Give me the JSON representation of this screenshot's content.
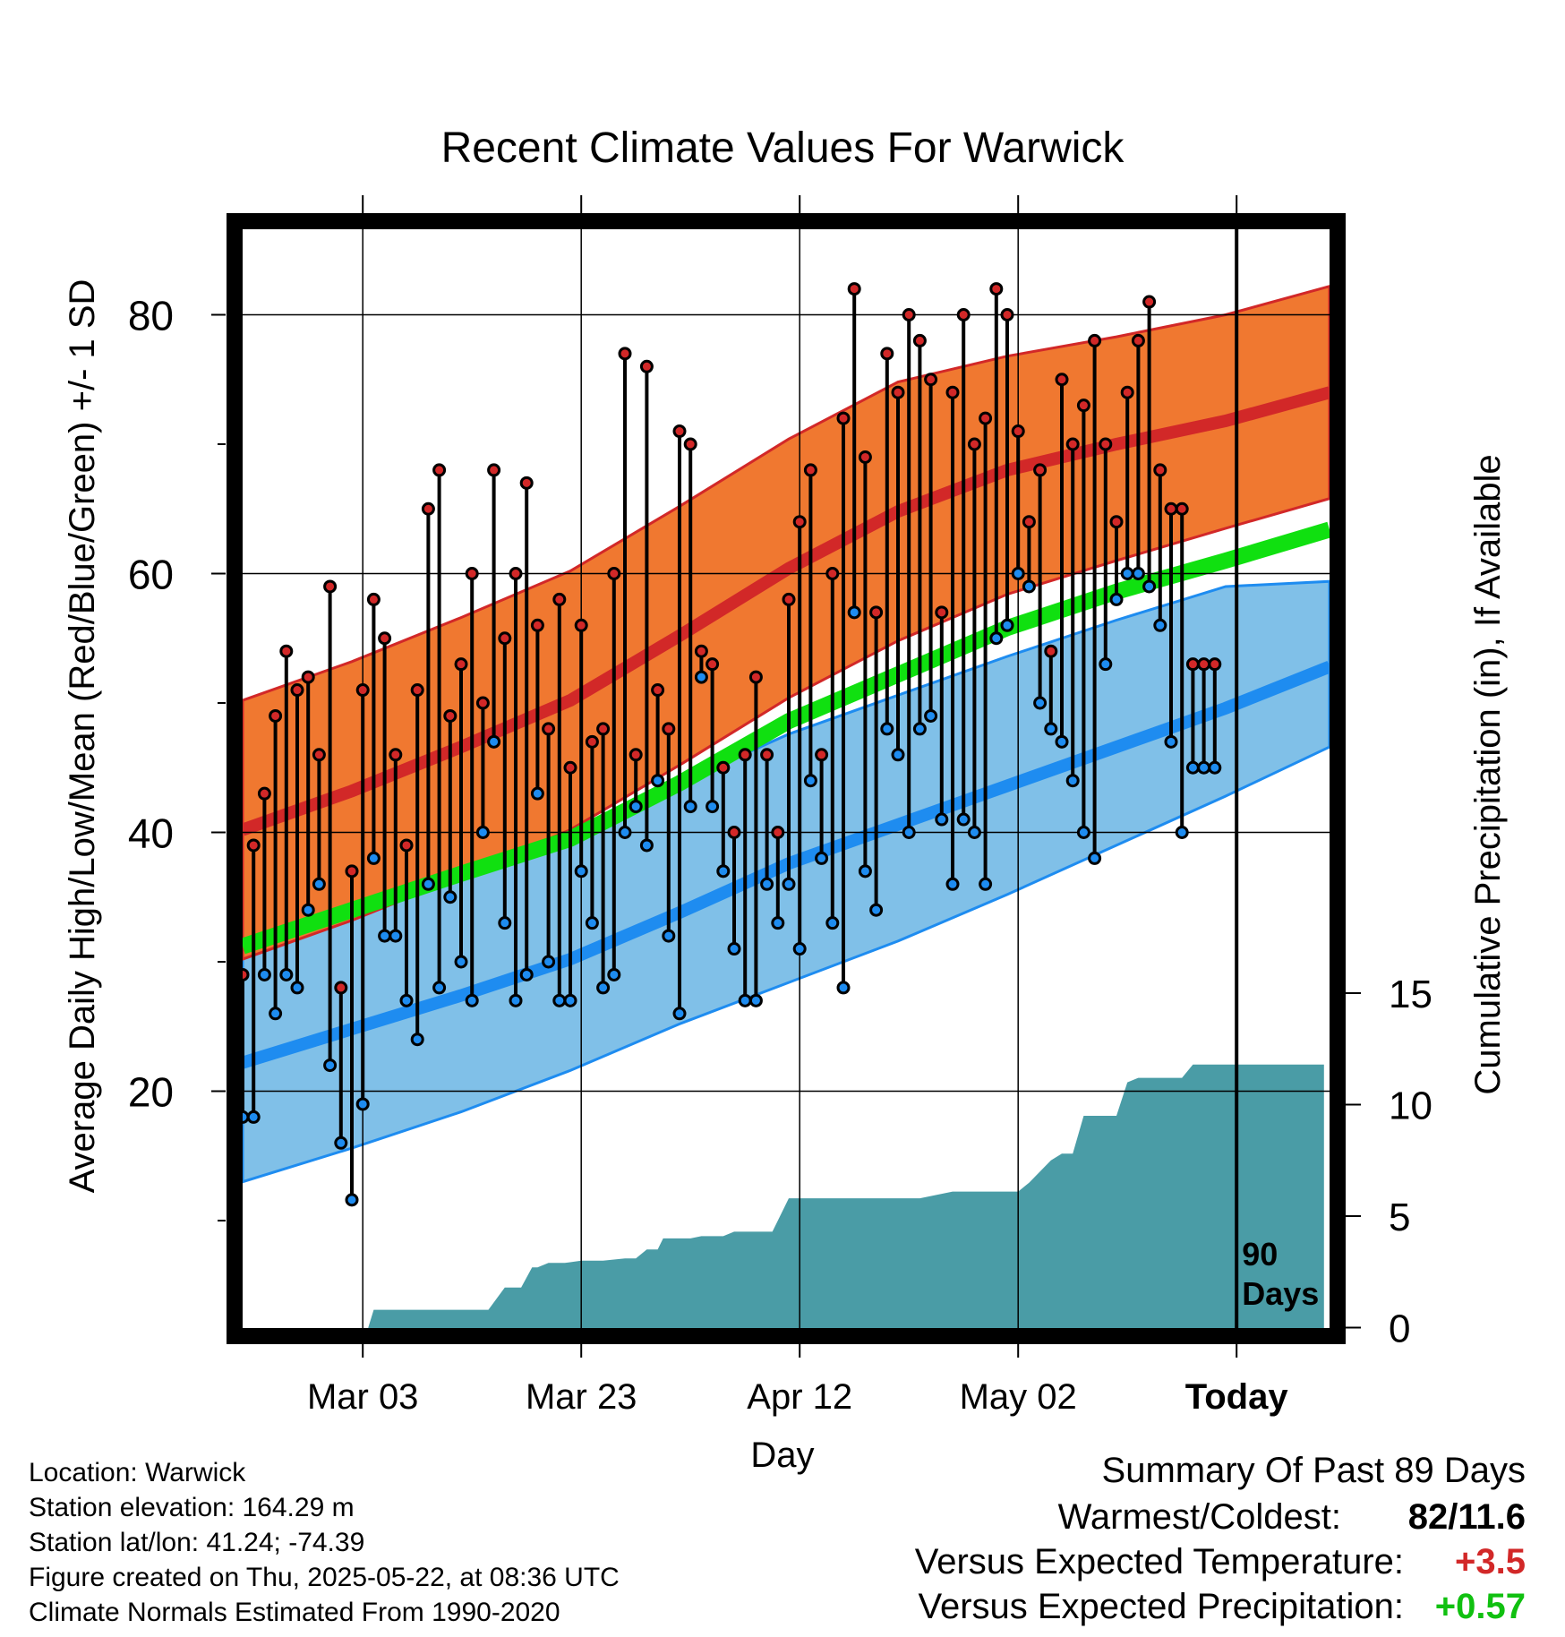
{
  "chart_data": {
    "type": "line",
    "title": "Recent Climate Values For Warwick",
    "xlabel": "Day",
    "ylabel": "Average Daily High/Low/Mean (Red/Blue/Green) +/- 1 SD",
    "y2label": "Cumulative Precipitation (in), If Available",
    "ylim": [
      4,
      86
    ],
    "y2lim": [
      -0.2,
      26
    ],
    "y_ticks": [
      80,
      60,
      40,
      20
    ],
    "y2_ticks": [
      15,
      10,
      5,
      0
    ],
    "x_tick_labels": [
      "Mar 03",
      "Mar 23",
      "Apr 12",
      "May 02",
      "Today"
    ],
    "x_tick_days": [
      11,
      31,
      51,
      71,
      91
    ],
    "today_day": 91,
    "today_marker_label": [
      "90",
      "Days"
    ],
    "grid": true,
    "colors": {
      "high_band": "#f07830",
      "high_mean": "#d22828",
      "low_band": "#80c0e8",
      "low_mean": "#1e8cf0",
      "mean": "#10e010",
      "precip": "#4a9ca6",
      "high_point": "#d22828",
      "low_point": "#1e8cf0"
    },
    "normals": {
      "days": [
        0,
        10,
        20,
        30,
        40,
        50,
        60,
        70,
        80,
        90,
        100
      ],
      "high_mean": [
        40.2,
        43.2,
        46.6,
        50.2,
        55.2,
        60.4,
        64.8,
        68.0,
        70.0,
        71.8,
        74.0
      ],
      "high_sd_upper": [
        50.2,
        53.2,
        56.6,
        60.2,
        65.2,
        70.4,
        74.8,
        76.8,
        78.3,
        80.0,
        82.2
      ],
      "high_sd_lower": [
        30.2,
        33.2,
        36.6,
        40.2,
        45.2,
        50.4,
        54.8,
        58.4,
        61.0,
        63.5,
        65.8
      ],
      "mean": [
        31.2,
        34.0,
        36.8,
        39.5,
        43.8,
        48.6,
        52.2,
        55.8,
        58.6,
        61.0,
        63.4
      ],
      "low_mean": [
        22.2,
        24.8,
        27.4,
        30.2,
        33.8,
        37.6,
        40.6,
        43.6,
        46.6,
        49.6,
        52.8
      ],
      "low_sd_upper": [
        32.2,
        34.8,
        37.4,
        40.2,
        43.8,
        47.6,
        50.6,
        53.6,
        56.4,
        59.0,
        59.4
      ],
      "low_sd_lower": [
        13.0,
        15.6,
        18.4,
        21.6,
        25.2,
        28.4,
        31.6,
        35.2,
        39.0,
        42.8,
        46.6
      ]
    },
    "series": [
      {
        "name": "High",
        "days": [
          0,
          1,
          2,
          3,
          4,
          5,
          6,
          7,
          8,
          9,
          10,
          11,
          12,
          13,
          14,
          15,
          16,
          17,
          18,
          19,
          20,
          21,
          22,
          23,
          24,
          25,
          26,
          27,
          28,
          29,
          30,
          31,
          32,
          33,
          34,
          35,
          36,
          37,
          38,
          39,
          40,
          41,
          42,
          43,
          44,
          45,
          46,
          47,
          48,
          49,
          50,
          51,
          52,
          53,
          54,
          55,
          56,
          57,
          58,
          59,
          60,
          61,
          62,
          63,
          64,
          65,
          66,
          67,
          68,
          69,
          70,
          71,
          72,
          73,
          74,
          75,
          76,
          77,
          78,
          79,
          80,
          81,
          82,
          83,
          84,
          85,
          86,
          87,
          88,
          89
        ],
        "values": [
          29,
          39,
          43,
          49,
          54,
          51,
          52,
          46,
          59,
          28,
          37,
          51,
          58,
          55,
          46,
          39,
          51,
          65,
          68,
          49,
          53,
          60,
          50,
          68,
          55,
          60,
          67,
          56,
          48,
          58,
          45,
          56,
          47,
          48,
          60,
          77,
          46,
          76,
          51,
          48,
          71,
          70,
          54,
          53,
          45,
          40,
          46,
          52,
          46,
          40,
          58,
          64,
          68,
          46,
          60,
          72,
          82,
          69,
          57,
          77,
          74,
          80,
          78,
          75,
          57,
          74,
          80,
          70,
          72,
          82,
          80,
          71,
          64,
          68,
          54,
          75,
          70,
          73,
          78,
          70,
          64,
          74,
          78,
          81,
          68,
          65,
          65,
          53,
          53,
          53
        ]
      },
      {
        "name": "Low",
        "days": [
          0,
          1,
          2,
          3,
          4,
          5,
          6,
          7,
          8,
          9,
          10,
          11,
          12,
          13,
          14,
          15,
          16,
          17,
          18,
          19,
          20,
          21,
          22,
          23,
          24,
          25,
          26,
          27,
          28,
          29,
          30,
          31,
          32,
          33,
          34,
          35,
          36,
          37,
          38,
          39,
          40,
          41,
          42,
          43,
          44,
          45,
          46,
          47,
          48,
          49,
          50,
          51,
          52,
          53,
          54,
          55,
          56,
          57,
          58,
          59,
          60,
          61,
          62,
          63,
          64,
          65,
          66,
          67,
          68,
          69,
          70,
          71,
          72,
          73,
          74,
          75,
          76,
          77,
          78,
          79,
          80,
          81,
          82,
          83,
          84,
          85,
          86,
          87,
          88,
          89
        ],
        "values": [
          18,
          18,
          29,
          26,
          29,
          28,
          34,
          36,
          22,
          16,
          11.6,
          19,
          38,
          32,
          32,
          27,
          24,
          36,
          28,
          35,
          30,
          27,
          40,
          47,
          33,
          27,
          29,
          43,
          30,
          27,
          27,
          37,
          33,
          28,
          29,
          40,
          42,
          39,
          44,
          32,
          26,
          42,
          52,
          42,
          37,
          31,
          27,
          27,
          36,
          33,
          36,
          31,
          44,
          38,
          33,
          28,
          57,
          37,
          34,
          48,
          46,
          40,
          48,
          49,
          41,
          36,
          41,
          40,
          36,
          55,
          56,
          60,
          59,
          50,
          48,
          47,
          44,
          40,
          38,
          53,
          58,
          60,
          60,
          59,
          56,
          47,
          40,
          45,
          45,
          45
        ]
      }
    ],
    "precipitation": {
      "days": [
        11.5,
        12,
        22.5,
        24,
        25.5,
        26.5,
        27,
        28,
        29.5,
        31,
        32,
        33,
        35,
        36,
        37,
        38,
        38.5,
        40,
        41,
        42,
        44,
        45,
        46,
        47,
        47.5,
        48.5,
        49,
        50,
        51,
        52,
        55,
        57,
        60,
        62,
        65,
        66,
        67,
        68,
        69,
        70,
        71,
        72,
        73,
        74,
        75,
        76,
        77,
        78,
        79,
        80,
        81,
        82,
        83,
        84,
        85,
        86,
        87,
        88,
        89,
        90,
        91,
        92,
        93,
        94,
        95,
        96,
        97,
        98,
        99
      ],
      "values": [
        0,
        0.8,
        0.8,
        1.8,
        1.8,
        2.7,
        2.7,
        2.9,
        2.9,
        3.0,
        3.0,
        3.0,
        3.1,
        3.1,
        3.5,
        3.5,
        4.0,
        4.0,
        4.0,
        4.1,
        4.1,
        4.3,
        4.3,
        4.3,
        4.3,
        4.3,
        4.8,
        5.8,
        5.8,
        5.8,
        5.8,
        5.8,
        5.8,
        5.8,
        6.1,
        6.1,
        6.1,
        6.1,
        6.1,
        6.1,
        6.1,
        6.5,
        7.0,
        7.5,
        7.8,
        7.8,
        9.5,
        9.5,
        9.5,
        9.5,
        11.0,
        11.2,
        11.2,
        11.2,
        11.2,
        11.2,
        11.8,
        11.8,
        11.8,
        11.8,
        11.8,
        11.8,
        11.8,
        11.8,
        11.8,
        11.8,
        11.8,
        11.8,
        11.8
      ]
    }
  },
  "info": {
    "location": "Location: Warwick",
    "elevation": "Station elevation: 164.29 m",
    "latlon": "Station lat/lon: 41.24; -74.39",
    "created": "Figure created on Thu, 2025-05-22, at 08:36 UTC",
    "normals": "Climate Normals Estimated From 1990-2020"
  },
  "summary": {
    "title": "Summary Of Past 89 Days",
    "warmest_coldest_label": "Warmest/Coldest:",
    "warmest_coldest_value": "82/11.6",
    "temp_label": "Versus Expected Temperature:",
    "temp_value": "+3.5",
    "temp_color": "#d22828",
    "precip_label": "Versus Expected Precipitation:",
    "precip_value": "+0.57",
    "precip_color": "#10c010"
  }
}
